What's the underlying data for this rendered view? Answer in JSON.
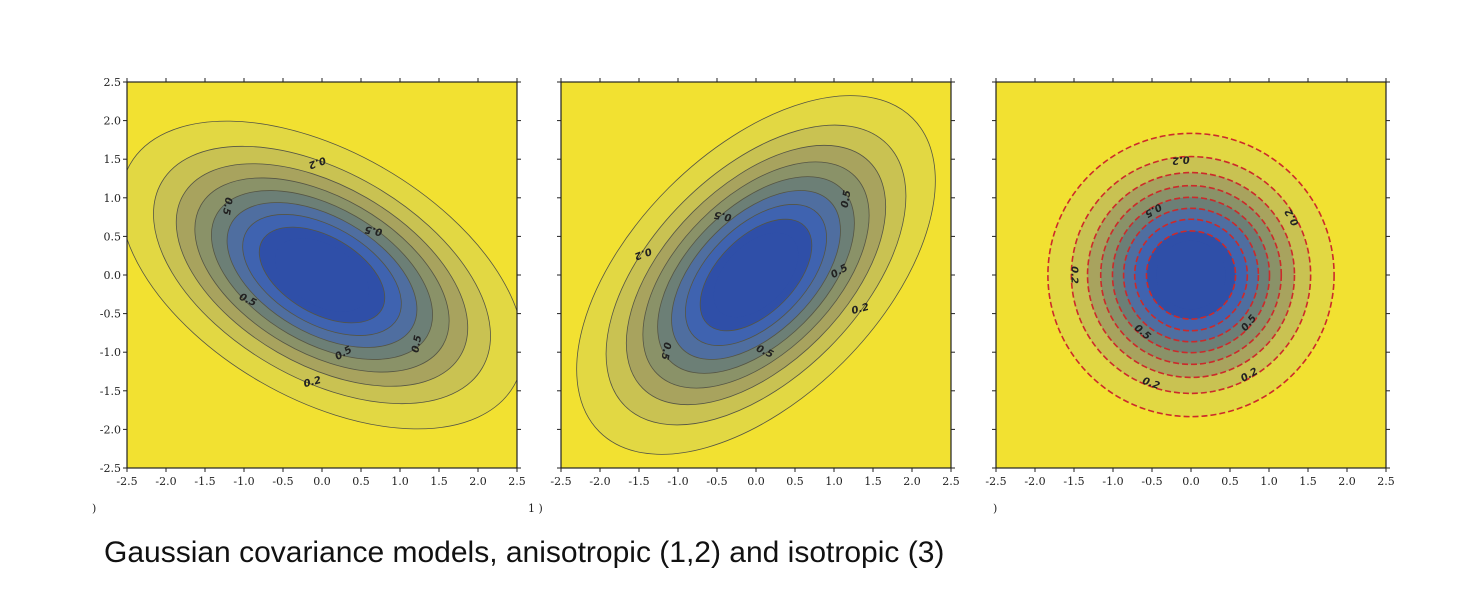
{
  "caption": "Gaussian covariance models, anisotropic (1,2) and isotropic (3)",
  "colors": {
    "background": "#f2e131",
    "levels": [
      "#eee236",
      "#e2d843",
      "#c9c252",
      "#a8a35e",
      "#8a9268",
      "#6c7f76",
      "#4f6ea0",
      "#3f63b0",
      "#2f4fa8"
    ],
    "contour_line": "#555544",
    "dashed_contour": "#cc2a2a"
  },
  "chart_data": [
    {
      "type": "contour",
      "title": "",
      "xlabel": "",
      "ylabel": "",
      "xlim": [
        -2.5,
        2.5
      ],
      "ylim": [
        -2.5,
        2.5
      ],
      "x_ticks": [
        "-2.5",
        "-2.0",
        "-1.5",
        "-1.0",
        "-0.5",
        "0.0",
        "0.5",
        "1.0",
        "1.5",
        "2.0",
        "2.5"
      ],
      "y_ticks": [
        "2.5",
        "2.0",
        "1.5",
        "1.0",
        "0.5",
        "0.0",
        "-0.5",
        "-1.0",
        "-1.5",
        "-2.0",
        "-2.5"
      ],
      "model": "anisotropic",
      "orientation_deg": -30,
      "contour_levels": [
        0.1,
        0.2,
        0.3,
        0.4,
        0.5,
        0.6,
        0.7,
        0.8
      ],
      "contour_labels": [
        "0.2",
        "0.5",
        "0.5",
        "0.5",
        "0.5",
        "0.5",
        "0.2"
      ],
      "grid": false,
      "line_style": "solid"
    },
    {
      "type": "contour",
      "title": "",
      "xlabel": "",
      "ylabel": "",
      "xlim": [
        -2.5,
        2.5
      ],
      "ylim": [
        -2.5,
        2.5
      ],
      "x_ticks": [
        "-2.5",
        "-2.0",
        "-1.5",
        "-1.0",
        "-0.5",
        "0.0",
        "0.5",
        "1.0",
        "1.5",
        "2.0",
        "2.5"
      ],
      "y_ticks": [],
      "model": "anisotropic",
      "orientation_deg": 45,
      "contour_levels": [
        0.1,
        0.2,
        0.3,
        0.4,
        0.5,
        0.6,
        0.7,
        0.8
      ],
      "contour_labels": [
        "0.2",
        "0.5",
        "0.5",
        "0.5",
        "0.5",
        "0.5",
        "0.2"
      ],
      "grid": false,
      "line_style": "solid"
    },
    {
      "type": "contour",
      "title": "",
      "xlabel": "",
      "ylabel": "",
      "xlim": [
        -2.5,
        2.5
      ],
      "ylim": [
        -2.5,
        2.5
      ],
      "x_ticks": [
        "-2.5",
        "-2.0",
        "-1.5",
        "-1.0",
        "-0.5",
        "0.0",
        "0.5",
        "1.0",
        "1.5",
        "2.0",
        "2.5"
      ],
      "y_ticks": [],
      "model": "isotropic",
      "orientation_deg": 0,
      "contour_levels": [
        0.1,
        0.2,
        0.3,
        0.4,
        0.5,
        0.6,
        0.7,
        0.8
      ],
      "contour_labels": [
        "0.2",
        "0.2",
        "0.5",
        "0.5",
        "0.2",
        "0.2",
        "0.5",
        "0.2"
      ],
      "grid": false,
      "line_style": "dashed"
    }
  ]
}
